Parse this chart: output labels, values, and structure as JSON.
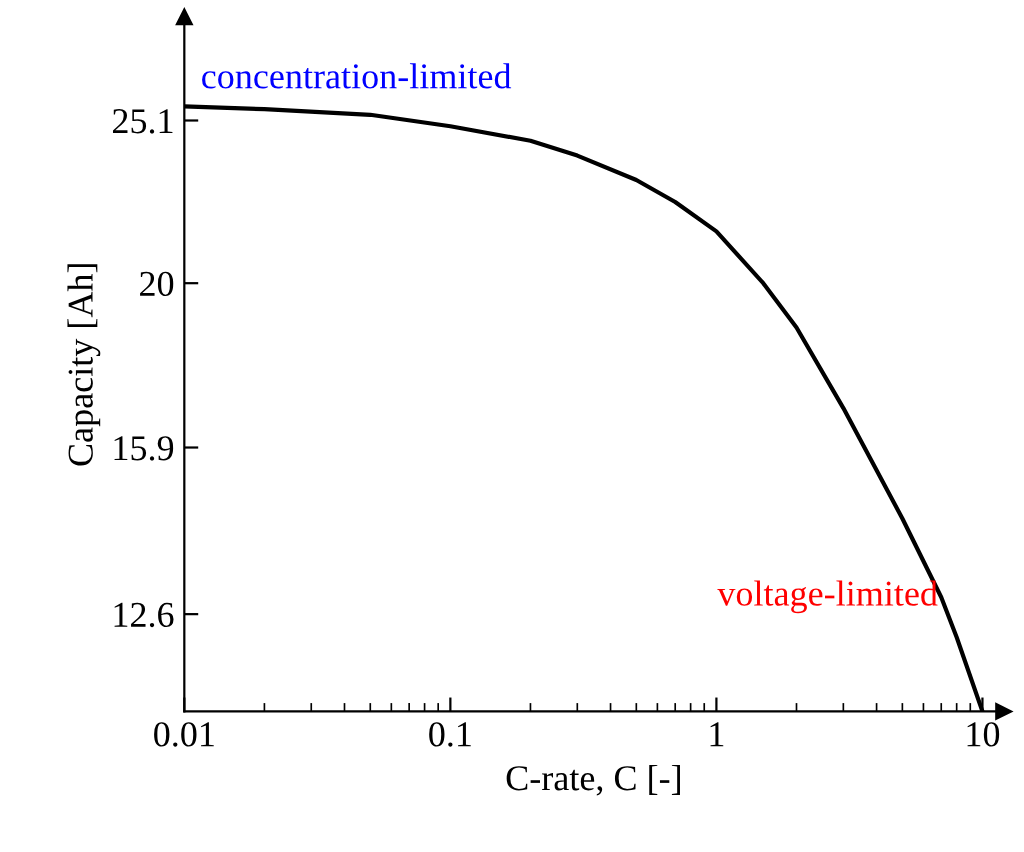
{
  "chart_data": {
    "type": "line",
    "xlabel": "C-rate, C [-]",
    "ylabel": "Capacity [Ah]",
    "log": "xy",
    "grid": false,
    "legend": false,
    "marker": "none",
    "line_style": "solid",
    "x": [
      0.01,
      0.02,
      0.05,
      0.1,
      0.2,
      0.3,
      0.5,
      0.7,
      1,
      1.5,
      2,
      3,
      5,
      7,
      8,
      10
    ],
    "series": [
      {
        "color": "#000000",
        "values": [
          25.6,
          25.5,
          25.3,
          24.9,
          24.4,
          23.9,
          23.1,
          22.4,
          21.5,
          20.0,
          18.8,
          16.8,
          14.4,
          12.9,
          12.2,
          11.0
        ]
      }
    ],
    "xlim": [
      0.01,
      12
    ],
    "ylim": [
      11,
      29
    ],
    "xticks": [
      0.01,
      0.1,
      1,
      10
    ],
    "yticks": [
      12.6,
      15.9,
      20,
      25.1
    ],
    "annotations": [
      "concentration-limited",
      "voltage-limited"
    ]
  }
}
